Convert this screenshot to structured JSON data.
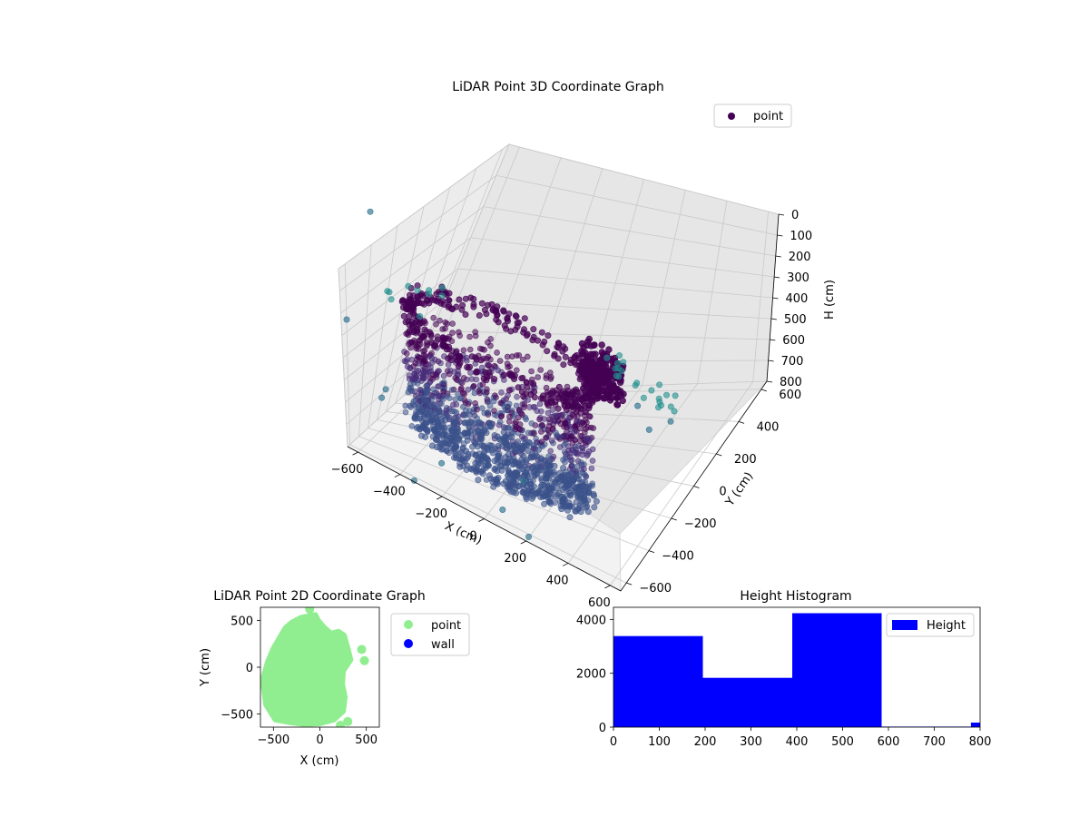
{
  "chart_data": [
    {
      "type": "scatter3d",
      "title": "LiDAR Point 3D Coordinate Graph",
      "xlabel": "X (cm)",
      "ylabel": "Y (cm)",
      "zlabel": "H (cm)",
      "x_ticks": [
        "−600",
        "−400",
        "−200",
        "0",
        "200",
        "400",
        "600"
      ],
      "y_ticks": [
        "−600",
        "−400",
        "−200",
        "0",
        "200",
        "400",
        "600"
      ],
      "z_ticks": [
        "0",
        "100",
        "200",
        "300",
        "400",
        "500",
        "600",
        "700",
        "800"
      ],
      "xlim": [
        -650,
        650
      ],
      "ylim": [
        -650,
        650
      ],
      "zlim": [
        0,
        800
      ],
      "z_inverted": true,
      "grid": true,
      "legend": {
        "position": "top-right",
        "entries": [
          "point"
        ]
      },
      "colormap": "viridis",
      "colors": [
        "#440154",
        "#472c7a",
        "#3b518b",
        "#2c718e",
        "#21908d",
        "#5ec962"
      ]
    },
    {
      "type": "scatter",
      "title": "LiDAR Point 2D Coordinate Graph",
      "xlabel": "X (cm)",
      "ylabel": "Y (cm)",
      "x_ticks": [
        "−500",
        "0",
        "500"
      ],
      "y_ticks": [
        "500",
        "0",
        "−500"
      ],
      "xlim": [
        -640,
        640
      ],
      "ylim": [
        -640,
        640
      ],
      "legend": {
        "position": "outside-right",
        "entries": [
          "point",
          "wall"
        ]
      },
      "series": [
        {
          "name": "point",
          "color": "#90ee90"
        },
        {
          "name": "wall",
          "color": "#0000ff"
        }
      ],
      "outline": [
        [
          -200,
          530
        ],
        [
          -50,
          560
        ],
        [
          -20,
          500
        ],
        [
          50,
          420
        ],
        [
          120,
          360
        ],
        [
          200,
          380
        ],
        [
          260,
          340
        ],
        [
          300,
          200
        ],
        [
          330,
          80
        ],
        [
          250,
          -40
        ],
        [
          240,
          -180
        ],
        [
          270,
          -320
        ],
        [
          250,
          -470
        ],
        [
          150,
          -560
        ],
        [
          0,
          -600
        ],
        [
          -160,
          -610
        ],
        [
          -320,
          -590
        ],
        [
          -480,
          -560
        ],
        [
          -580,
          -400
        ],
        [
          -600,
          -250
        ],
        [
          -620,
          -150
        ],
        [
          -560,
          60
        ],
        [
          -500,
          200
        ],
        [
          -430,
          320
        ],
        [
          -370,
          420
        ],
        [
          -300,
          480
        ]
      ],
      "outliers": [
        [
          450,
          190
        ],
        [
          480,
          70
        ],
        [
          300,
          -580
        ],
        [
          220,
          -620
        ],
        [
          -110,
          620
        ]
      ]
    },
    {
      "type": "histogram",
      "title": "Height Histogram",
      "x_ticks": [
        "0",
        "100",
        "200",
        "300",
        "400",
        "500",
        "600",
        "700",
        "800"
      ],
      "y_ticks": [
        "0",
        "2000",
        "4000"
      ],
      "xlim": [
        0,
        800
      ],
      "ylim": [
        0,
        4450
      ],
      "legend": {
        "position": "top-right",
        "entries": [
          "Height"
        ]
      },
      "color": "#0000ff",
      "bins": [
        {
          "start": 0,
          "end": 195,
          "count": 3380
        },
        {
          "start": 195,
          "end": 390,
          "count": 1830
        },
        {
          "start": 390,
          "end": 585,
          "count": 4230
        },
        {
          "start": 585,
          "end": 780,
          "count": 20
        },
        {
          "start": 780,
          "end": 800,
          "count": 170
        }
      ]
    }
  ]
}
